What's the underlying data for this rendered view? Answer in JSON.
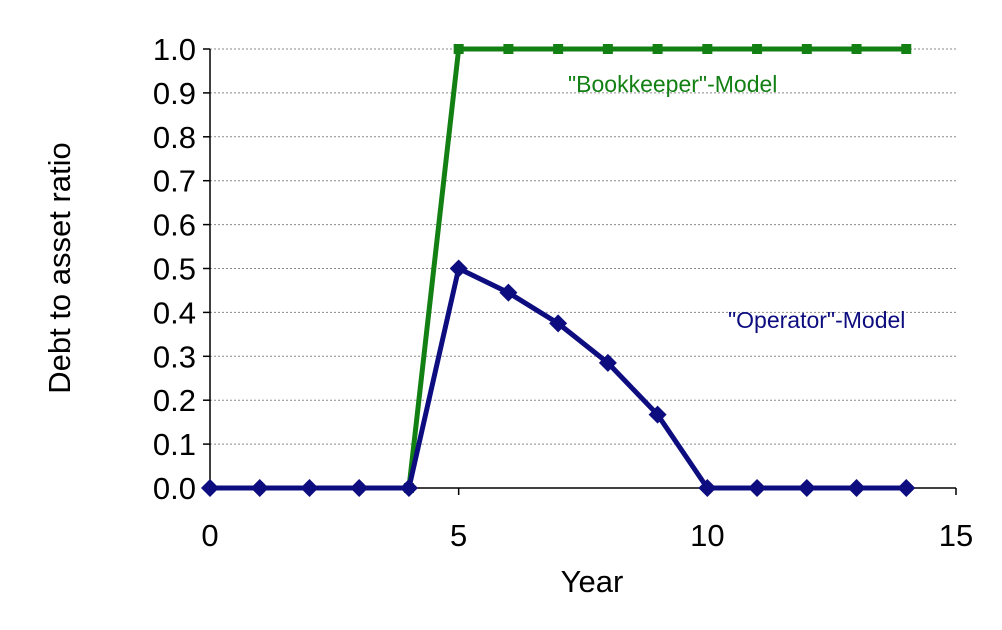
{
  "chart_data": {
    "type": "line",
    "xlabel": "Year",
    "ylabel": "Debt to asset ratio",
    "xlim": [
      0,
      15
    ],
    "ylim": [
      0,
      1.0
    ],
    "xticks": [
      "0",
      "5",
      "10",
      "15"
    ],
    "yticks": [
      "0.0",
      "0.1",
      "0.2",
      "0.3",
      "0.4",
      "0.5",
      "0.6",
      "0.7",
      "0.8",
      "0.9",
      "1.0"
    ],
    "grid": "horizontal dashed",
    "series": [
      {
        "name": "\"Bookkeeper\"-Model",
        "marker": "square",
        "color": "#138013",
        "x": [
          4,
          5,
          6,
          7,
          8,
          9,
          10,
          11,
          12,
          13,
          14
        ],
        "y": [
          0,
          1.0,
          1.0,
          1.0,
          1.0,
          1.0,
          1.0,
          1.0,
          1.0,
          1.0,
          1.0
        ]
      },
      {
        "name": "\"Operator\"-Model",
        "marker": "diamond",
        "color": "#0d0d80",
        "x": [
          0,
          1,
          2,
          3,
          4,
          5,
          6,
          7,
          8,
          9,
          10,
          11,
          12,
          13,
          14
        ],
        "y": [
          0,
          0,
          0,
          0,
          0,
          0.5,
          0.445,
          0.375,
          0.285,
          0.167,
          0,
          0,
          0,
          0,
          0
        ]
      }
    ]
  }
}
